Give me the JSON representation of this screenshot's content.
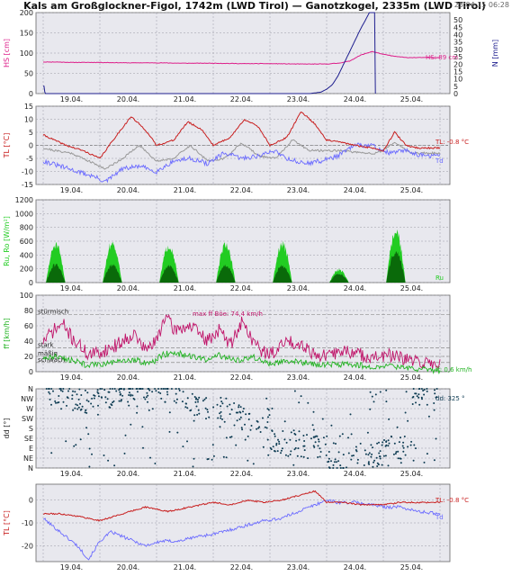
{
  "header": {
    "title": "Kals am Großglockner-Figol, 1742m (LWD Tirol) — Ganotzkogel, 2335m (LWD Tirol)",
    "timestamp": "25.04.15 06:28"
  },
  "colors": {
    "hs": "#dd1f8a",
    "precip": "#1f1f8f",
    "tl": "#c81e1e",
    "tsurf": "#999999",
    "td": "#6b6bff",
    "rad_light": "#22cc22",
    "rad_dark": "#0a6a0a",
    "ff": "#22b322",
    "gust": "#c0156a",
    "dd": "#0d3b52"
  },
  "x_axis": {
    "date_labels": [
      "19.04.",
      "20.04.",
      "21.04.",
      "22.04.",
      "23.04.",
      "24.04.",
      "25.04."
    ]
  },
  "chart_data": [
    {
      "type": "line",
      "panel": "snow",
      "ylabel": "HS [cm]",
      "ylim": [
        0,
        200
      ],
      "yticks": [
        "0",
        "50",
        "100",
        "150",
        "200"
      ],
      "y2label": "N [mm]",
      "y2lim": [
        0,
        55
      ],
      "y2ticks": [
        "0",
        "5",
        "10",
        "15",
        "20",
        "25",
        "30",
        "35",
        "40",
        "45",
        "50"
      ],
      "annotation": "HS: 89 cm",
      "series": [
        {
          "name": "HS",
          "axis": "left",
          "x": [
            0.0,
            0.25,
            0.5,
            1.0,
            1.5,
            2.0,
            2.5,
            3.0,
            3.5,
            4.0,
            4.5,
            5.0,
            5.2,
            5.4,
            5.6,
            5.8,
            6.0,
            6.2,
            6.4,
            6.6,
            6.8,
            7.0
          ],
          "y": [
            78,
            78,
            77,
            77,
            76,
            76,
            75,
            75,
            74,
            74,
            73,
            73,
            75,
            80,
            95,
            104,
            97,
            92,
            89,
            89,
            89,
            89
          ]
        },
        {
          "name": "N",
          "axis": "right",
          "x": [
            0.0,
            0.02,
            0.03,
            0.05,
            4.0,
            4.5,
            4.7,
            4.9,
            5.0,
            5.1,
            5.2,
            5.3,
            5.4,
            5.5,
            5.6,
            5.7,
            5.78,
            5.8,
            5.82,
            5.85,
            5.86
          ],
          "y": [
            5,
            5,
            0,
            0,
            0,
            0,
            0,
            1,
            3,
            6,
            12,
            20,
            28,
            36,
            44,
            51,
            57,
            58,
            58,
            57,
            0
          ]
        }
      ]
    },
    {
      "type": "line",
      "panel": "temperature",
      "ylabel": "TL [°C]",
      "ylim": [
        -15,
        15
      ],
      "yticks": [
        "-15",
        "-10",
        "-5",
        "0",
        "5",
        "10",
        "15"
      ],
      "annotations": [
        "TL: -0.8 °C",
        "Td"
      ],
      "series": [
        {
          "name": "TL",
          "x": [
            0.0,
            0.2,
            0.4,
            0.7,
            1.0,
            1.3,
            1.55,
            1.8,
            2.0,
            2.3,
            2.55,
            2.8,
            3.0,
            3.3,
            3.55,
            3.8,
            4.0,
            4.3,
            4.55,
            4.8,
            5.0,
            5.3,
            5.5,
            5.8,
            6.0,
            6.2,
            6.4,
            6.6,
            6.8,
            7.0
          ],
          "y": [
            4,
            2,
            0,
            -2,
            -5,
            4,
            11,
            6,
            0,
            2,
            9,
            6,
            0,
            3,
            10,
            7,
            0,
            3,
            13,
            8,
            2,
            1,
            0,
            -1,
            -2,
            5,
            0,
            -1,
            -1,
            -1
          ]
        },
        {
          "name": "Tsurf",
          "x": [
            0.0,
            0.2,
            0.5,
            0.8,
            1.1,
            1.4,
            1.7,
            2.0,
            2.3,
            2.6,
            2.9,
            3.2,
            3.5,
            3.8,
            4.1,
            4.4,
            4.7,
            5.0,
            5.3,
            5.6,
            5.9,
            6.2,
            6.5,
            6.8,
            7.0
          ],
          "y": [
            -1,
            -2,
            -3,
            -6,
            -9,
            -5,
            0,
            -6,
            -5,
            0,
            -6,
            -5,
            1,
            -4,
            -5,
            2,
            -2,
            -2,
            -2,
            -3,
            -3,
            1,
            -3,
            -3,
            -3
          ]
        },
        {
          "name": "Td",
          "x": [
            0.0,
            0.3,
            0.6,
            0.9,
            1.1,
            1.4,
            1.7,
            2.0,
            2.3,
            2.6,
            2.9,
            3.2,
            3.5,
            3.8,
            4.1,
            4.3,
            4.6,
            4.9,
            5.2,
            5.5,
            5.8,
            6.1,
            6.4,
            6.7,
            7.0
          ],
          "y": [
            -6,
            -8,
            -10,
            -12,
            -14,
            -9,
            -8,
            -10,
            -6,
            -5,
            -7,
            -3,
            -5,
            -4,
            -2,
            -5,
            -7,
            -6,
            -4,
            0,
            0,
            -3,
            -2,
            -4,
            -4
          ]
        }
      ]
    },
    {
      "type": "area",
      "panel": "radiation",
      "ylabel": "Ru, Ro [W/m²]",
      "ylim": [
        0,
        1200
      ],
      "yticks": [
        "0",
        "200",
        "400",
        "600",
        "800",
        "1000",
        "1200"
      ],
      "annotation": "Ru",
      "series": [
        {
          "name": "Ro",
          "days": [
            0,
            1,
            2,
            3,
            4,
            5,
            6
          ],
          "daily_peak": [
            610,
            640,
            600,
            610,
            620,
            210,
            850
          ]
        },
        {
          "name": "Ru",
          "days": [
            0,
            1,
            2,
            3,
            4,
            5,
            6
          ],
          "daily_peak": [
            290,
            280,
            270,
            280,
            270,
            140,
            500
          ]
        }
      ]
    },
    {
      "type": "line",
      "panel": "wind",
      "ylabel": "ff [km/h]",
      "ylim": [
        0,
        100
      ],
      "yticks": [
        "0",
        "20",
        "40",
        "60",
        "80",
        "100"
      ],
      "labels": [
        "stürmisch",
        "stark",
        "mäßig",
        "schwach"
      ],
      "reference_lines": [
        75,
        31,
        20,
        12
      ],
      "annotations": [
        "max ff Böe: 74,4 km/h",
        "ff: 0,6 km/h"
      ],
      "series": [
        {
          "name": "Böe",
          "x": [
            0.0,
            0.2,
            0.35,
            0.5,
            0.8,
            1.0,
            1.3,
            1.6,
            1.8,
            2.0,
            2.15,
            2.3,
            2.6,
            2.9,
            3.1,
            3.3,
            3.5,
            3.8,
            4.0,
            4.3,
            4.6,
            4.8,
            5.0,
            5.3,
            5.6,
            5.9,
            6.1,
            6.4,
            6.7,
            7.0
          ],
          "y": [
            40,
            55,
            62,
            45,
            22,
            25,
            35,
            50,
            28,
            40,
            74,
            55,
            60,
            40,
            55,
            35,
            65,
            30,
            22,
            40,
            35,
            22,
            20,
            28,
            22,
            18,
            22,
            15,
            12,
            10
          ]
        },
        {
          "name": "ff",
          "x": [
            0.0,
            0.3,
            0.5,
            0.8,
            1.0,
            1.3,
            1.6,
            1.9,
            2.1,
            2.3,
            2.6,
            2.9,
            3.1,
            3.4,
            3.7,
            4.0,
            4.3,
            4.6,
            4.9,
            5.2,
            5.5,
            5.8,
            6.1,
            6.4,
            6.7,
            7.0
          ],
          "y": [
            18,
            20,
            15,
            8,
            10,
            12,
            16,
            10,
            22,
            25,
            20,
            15,
            22,
            14,
            20,
            10,
            15,
            12,
            8,
            10,
            9,
            6,
            8,
            5,
            3,
            1
          ]
        }
      ]
    },
    {
      "type": "scatter",
      "panel": "direction",
      "ylabel": "dd [°]",
      "yticks": [
        "N",
        "NW",
        "W",
        "SW",
        "S",
        "SE",
        "E",
        "NE",
        "N"
      ],
      "annotation": "dd: 325 °"
    },
    {
      "type": "line",
      "panel": "temperature2",
      "ylabel": "TL [°C]",
      "ylim": [
        -27,
        7
      ],
      "yticks": [
        "0",
        "-10",
        "-20"
      ],
      "annotations": [
        "TL: -0.8 °C",
        "Td"
      ],
      "series": [
        {
          "name": "TL",
          "x": [
            0.0,
            0.3,
            0.6,
            1.0,
            1.4,
            1.8,
            2.2,
            2.6,
            3.0,
            3.3,
            3.6,
            3.9,
            4.2,
            4.5,
            4.8,
            5.0,
            5.3,
            5.6,
            6.0,
            6.3,
            6.6,
            7.0
          ],
          "y": [
            -6,
            -6,
            -7,
            -9,
            -6,
            -3,
            -5,
            -3,
            -1,
            -2,
            0,
            -1,
            0,
            2,
            4,
            -1,
            -1,
            -2,
            -2,
            -1,
            -1,
            -1
          ]
        },
        {
          "name": "Td",
          "x": [
            0.0,
            0.3,
            0.6,
            0.8,
            1.0,
            1.2,
            1.5,
            1.8,
            2.1,
            2.4,
            2.7,
            3.0,
            3.3,
            3.6,
            3.9,
            4.2,
            4.5,
            4.8,
            5.0,
            5.2,
            5.5,
            5.8,
            6.0,
            6.3,
            6.6,
            7.0
          ],
          "y": [
            -8,
            -14,
            -20,
            -26,
            -18,
            -14,
            -17,
            -20,
            -18,
            -18,
            -16,
            -15,
            -13,
            -11,
            -9,
            -8,
            -5,
            -2,
            0,
            -1,
            -1,
            -2,
            -3,
            -3,
            -5,
            -6
          ]
        }
      ]
    }
  ]
}
